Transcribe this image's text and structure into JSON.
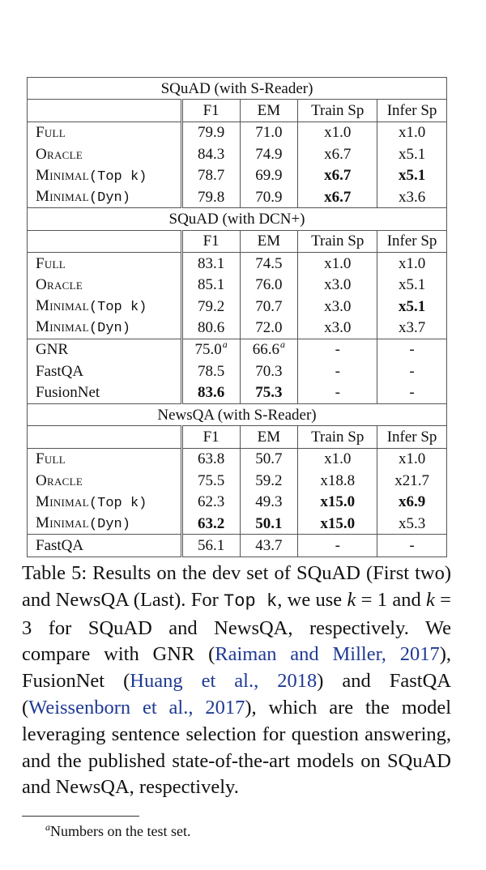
{
  "columns": [
    "F1",
    "EM",
    "Train Sp",
    "Infer Sp"
  ],
  "sections": [
    {
      "title": "SQuAD (with S-Reader)",
      "rows": [
        {
          "name": "Full",
          "model_style": "sc",
          "f1": "79.9",
          "em": "71.0",
          "train": "x1.0",
          "infer": "x1.0"
        },
        {
          "name": "Oracle",
          "model_style": "sc",
          "f1": "84.3",
          "em": "74.9",
          "train": "x6.7",
          "infer": "x5.1"
        },
        {
          "name": "Minimal",
          "suffix": "(Top k)",
          "model_style": "sc",
          "f1": "78.7",
          "em": "69.9",
          "train": "x6.7",
          "infer": "x5.1",
          "bold": [
            "train",
            "infer"
          ]
        },
        {
          "name": "Minimal",
          "suffix": "(Dyn)",
          "model_style": "sc",
          "f1": "79.8",
          "em": "70.9",
          "train": "x6.7",
          "infer": "x3.6",
          "bold": [
            "train"
          ]
        }
      ]
    },
    {
      "title": "SQuAD (with DCN+)",
      "rows": [
        {
          "name": "Full",
          "model_style": "sc",
          "f1": "83.1",
          "em": "74.5",
          "train": "x1.0",
          "infer": "x1.0"
        },
        {
          "name": "Oracle",
          "model_style": "sc",
          "f1": "85.1",
          "em": "76.0",
          "train": "x3.0",
          "infer": "x5.1"
        },
        {
          "name": "Minimal",
          "suffix": "(Top k)",
          "model_style": "sc",
          "f1": "79.2",
          "em": "70.7",
          "train": "x3.0",
          "infer": "x5.1",
          "bold": [
            "infer"
          ]
        },
        {
          "name": "Minimal",
          "suffix": "(Dyn)",
          "model_style": "sc",
          "f1": "80.6",
          "em": "72.0",
          "train": "x3.0",
          "infer": "x3.7"
        },
        {
          "name": "GNR",
          "f1": "75.0",
          "f1_note": "a",
          "em": "66.6",
          "em_note": "a",
          "train": "-",
          "infer": "-",
          "group_start": true
        },
        {
          "name": "FastQA",
          "f1": "78.5",
          "em": "70.3",
          "train": "-",
          "infer": "-"
        },
        {
          "name": "FusionNet",
          "f1": "83.6",
          "em": "75.3",
          "train": "-",
          "infer": "-",
          "bold": [
            "f1",
            "em"
          ]
        }
      ]
    },
    {
      "title": "NewsQA (with S-Reader)",
      "rows": [
        {
          "name": "Full",
          "model_style": "sc",
          "f1": "63.8",
          "em": "50.7",
          "train": "x1.0",
          "infer": "x1.0"
        },
        {
          "name": "Oracle",
          "model_style": "sc",
          "f1": "75.5",
          "em": "59.2",
          "train": "x18.8",
          "infer": "x21.7"
        },
        {
          "name": "Minimal",
          "suffix": "(Top k)",
          "model_style": "sc",
          "f1": "62.3",
          "em": "49.3",
          "train": "x15.0",
          "infer": "x6.9",
          "bold": [
            "train",
            "infer"
          ]
        },
        {
          "name": "Minimal",
          "suffix": "(Dyn)",
          "model_style": "sc",
          "f1": "63.2",
          "em": "50.1",
          "train": "x15.0",
          "infer": "x5.3",
          "bold": [
            "f1",
            "em",
            "train"
          ]
        },
        {
          "name": "FastQA",
          "f1": "56.1",
          "em": "43.7",
          "train": "-",
          "infer": "-",
          "group_start": true
        }
      ]
    }
  ],
  "caption": {
    "t1": "Table 5: Results on the dev set of SQuAD (First two) and NewsQA (Last). For ",
    "code": "Top k",
    "t2": ", we use ",
    "k1": "k",
    "eq1": " = 1 and ",
    "k2": "k",
    "eq2": " = 3 for SQuAD and NewsQA, respectively. We compare with GNR (",
    "cite1": "Raiman and Miller, 2017",
    "t3": "), FusionNet (",
    "cite2": "Huang et al., 2018",
    "t4": ") and FastQA (",
    "cite3": "Weissenborn et al., 2017",
    "t5": "), which are the model leveraging sentence selection for question answering, and the published state-of-the-art models on SQuAD and NewsQA, respectively."
  },
  "footnote": {
    "mark": "a",
    "text": "Numbers on the test set."
  }
}
